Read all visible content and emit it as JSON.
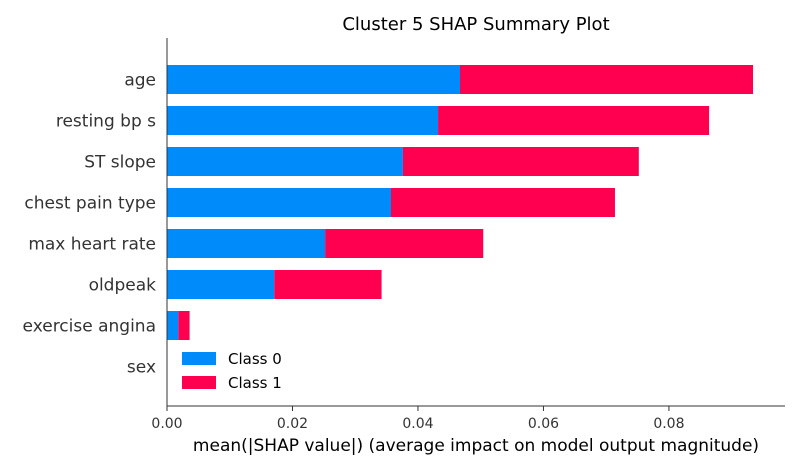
{
  "chart_data": {
    "type": "bar",
    "orientation": "horizontal",
    "stacked": true,
    "title": "Cluster 5 SHAP Summary Plot",
    "xlabel": "mean(|SHAP value|) (average impact on model output magnitude)",
    "ylabel": "",
    "categories": [
      "age",
      "resting bp s",
      "ST slope",
      "chest pain type",
      "max heart rate",
      "oldpeak",
      "exercise angina",
      "sex"
    ],
    "series": [
      {
        "name": "Class 0",
        "color": "#008bfb",
        "values": [
          0.0467,
          0.0432,
          0.0376,
          0.0357,
          0.0252,
          0.0171,
          0.0018,
          0.0
        ]
      },
      {
        "name": "Class 1",
        "color": "#ff0051",
        "values": [
          0.0467,
          0.0432,
          0.0376,
          0.0357,
          0.0252,
          0.0171,
          0.0018,
          0.0
        ]
      }
    ],
    "xlim": [
      0,
      0.0985
    ],
    "xticks": [
      "0.00",
      "0.02",
      "0.04",
      "0.06",
      "0.08"
    ],
    "xtick_values": [
      0,
      0.02,
      0.04,
      0.06,
      0.08
    ],
    "legend_position": "lower-left",
    "grid": false
  }
}
